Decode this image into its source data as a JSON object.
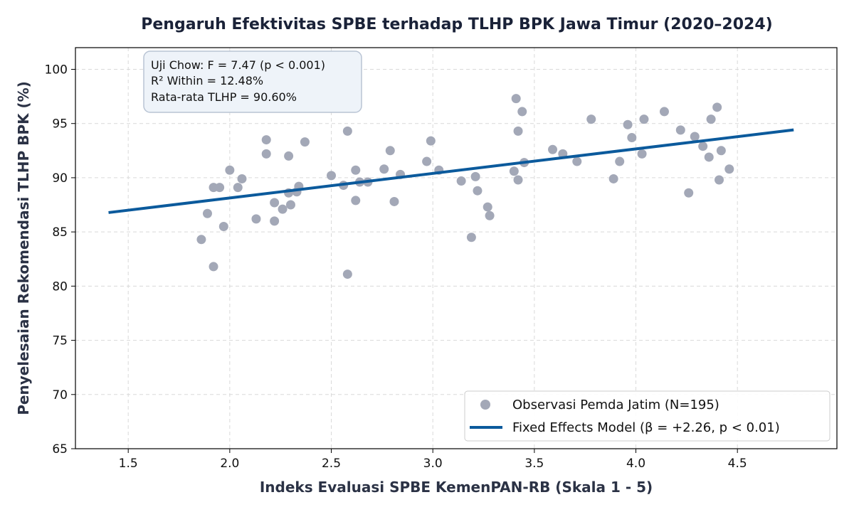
{
  "chart_data": {
    "type": "scatter",
    "title": "Pengaruh Efektivitas SPBE terhadap TLHP BPK Jawa Timur (2020–2024)",
    "xlabel": "Indeks Evaluasi SPBE KemenPAN-RB (Skala 1 - 5)",
    "ylabel": "Penyelesaian Rekomendasi TLHP BPK (%)",
    "xlim": [
      1.24,
      4.99
    ],
    "ylim": [
      65,
      102
    ],
    "xticks": [
      "1.5",
      "2.0",
      "2.5",
      "3.0",
      "3.5",
      "4.0",
      "4.5"
    ],
    "yticks": [
      "65",
      "70",
      "75",
      "80",
      "85",
      "90",
      "95",
      "100"
    ],
    "grid": true,
    "legend_position": "bottom-right",
    "annotations": [
      "Uji Chow: F = 7.47 (p < 0.001)",
      "R² Within = 12.48%",
      "Rata-rata TLHP = 90.60%"
    ],
    "series": [
      {
        "name": "Observasi Pemda Jatim (N=195)",
        "kind": "scatter",
        "color": "#a3a8b7",
        "points": [
          [
            1.86,
            84.3
          ],
          [
            1.89,
            86.7
          ],
          [
            1.92,
            81.8
          ],
          [
            1.92,
            89.1
          ],
          [
            1.95,
            89.1
          ],
          [
            1.97,
            85.5
          ],
          [
            2.0,
            90.7
          ],
          [
            2.04,
            89.1
          ],
          [
            2.06,
            89.9
          ],
          [
            2.13,
            86.2
          ],
          [
            2.18,
            93.5
          ],
          [
            2.18,
            92.2
          ],
          [
            2.22,
            87.7
          ],
          [
            2.22,
            86.0
          ],
          [
            2.26,
            87.1
          ],
          [
            2.29,
            88.6
          ],
          [
            2.29,
            92.0
          ],
          [
            2.3,
            87.5
          ],
          [
            2.33,
            88.7
          ],
          [
            2.34,
            89.2
          ],
          [
            2.37,
            93.3
          ],
          [
            2.5,
            90.2
          ],
          [
            2.56,
            89.3
          ],
          [
            2.58,
            94.3
          ],
          [
            2.58,
            81.1
          ],
          [
            2.62,
            90.7
          ],
          [
            2.62,
            87.9
          ],
          [
            2.64,
            89.6
          ],
          [
            2.68,
            89.6
          ],
          [
            2.76,
            90.8
          ],
          [
            2.79,
            92.5
          ],
          [
            2.81,
            87.8
          ],
          [
            2.84,
            90.3
          ],
          [
            2.97,
            91.5
          ],
          [
            2.99,
            93.4
          ],
          [
            3.03,
            90.7
          ],
          [
            3.14,
            89.7
          ],
          [
            3.19,
            84.5
          ],
          [
            3.21,
            90.1
          ],
          [
            3.22,
            88.8
          ],
          [
            3.27,
            87.3
          ],
          [
            3.28,
            86.5
          ],
          [
            3.4,
            90.6
          ],
          [
            3.41,
            97.3
          ],
          [
            3.42,
            94.3
          ],
          [
            3.42,
            89.8
          ],
          [
            3.44,
            96.1
          ],
          [
            3.45,
            91.4
          ],
          [
            3.59,
            92.6
          ],
          [
            3.64,
            92.2
          ],
          [
            3.71,
            91.5
          ],
          [
            3.78,
            95.4
          ],
          [
            3.89,
            89.9
          ],
          [
            3.92,
            91.5
          ],
          [
            3.96,
            94.9
          ],
          [
            3.98,
            93.7
          ],
          [
            4.03,
            92.2
          ],
          [
            4.04,
            95.4
          ],
          [
            4.14,
            96.1
          ],
          [
            4.22,
            94.4
          ],
          [
            4.26,
            88.6
          ],
          [
            4.29,
            93.8
          ],
          [
            4.33,
            92.9
          ],
          [
            4.36,
            91.9
          ],
          [
            4.37,
            95.4
          ],
          [
            4.4,
            96.5
          ],
          [
            4.41,
            89.8
          ],
          [
            4.42,
            92.5
          ],
          [
            4.46,
            90.8
          ]
        ]
      },
      {
        "name": "Fixed Effects Model (β = +2.26, p < 0.01)",
        "kind": "line",
        "color": "#0b5a9c",
        "points": [
          [
            1.41,
            86.8
          ],
          [
            4.77,
            94.4
          ]
        ]
      }
    ]
  }
}
